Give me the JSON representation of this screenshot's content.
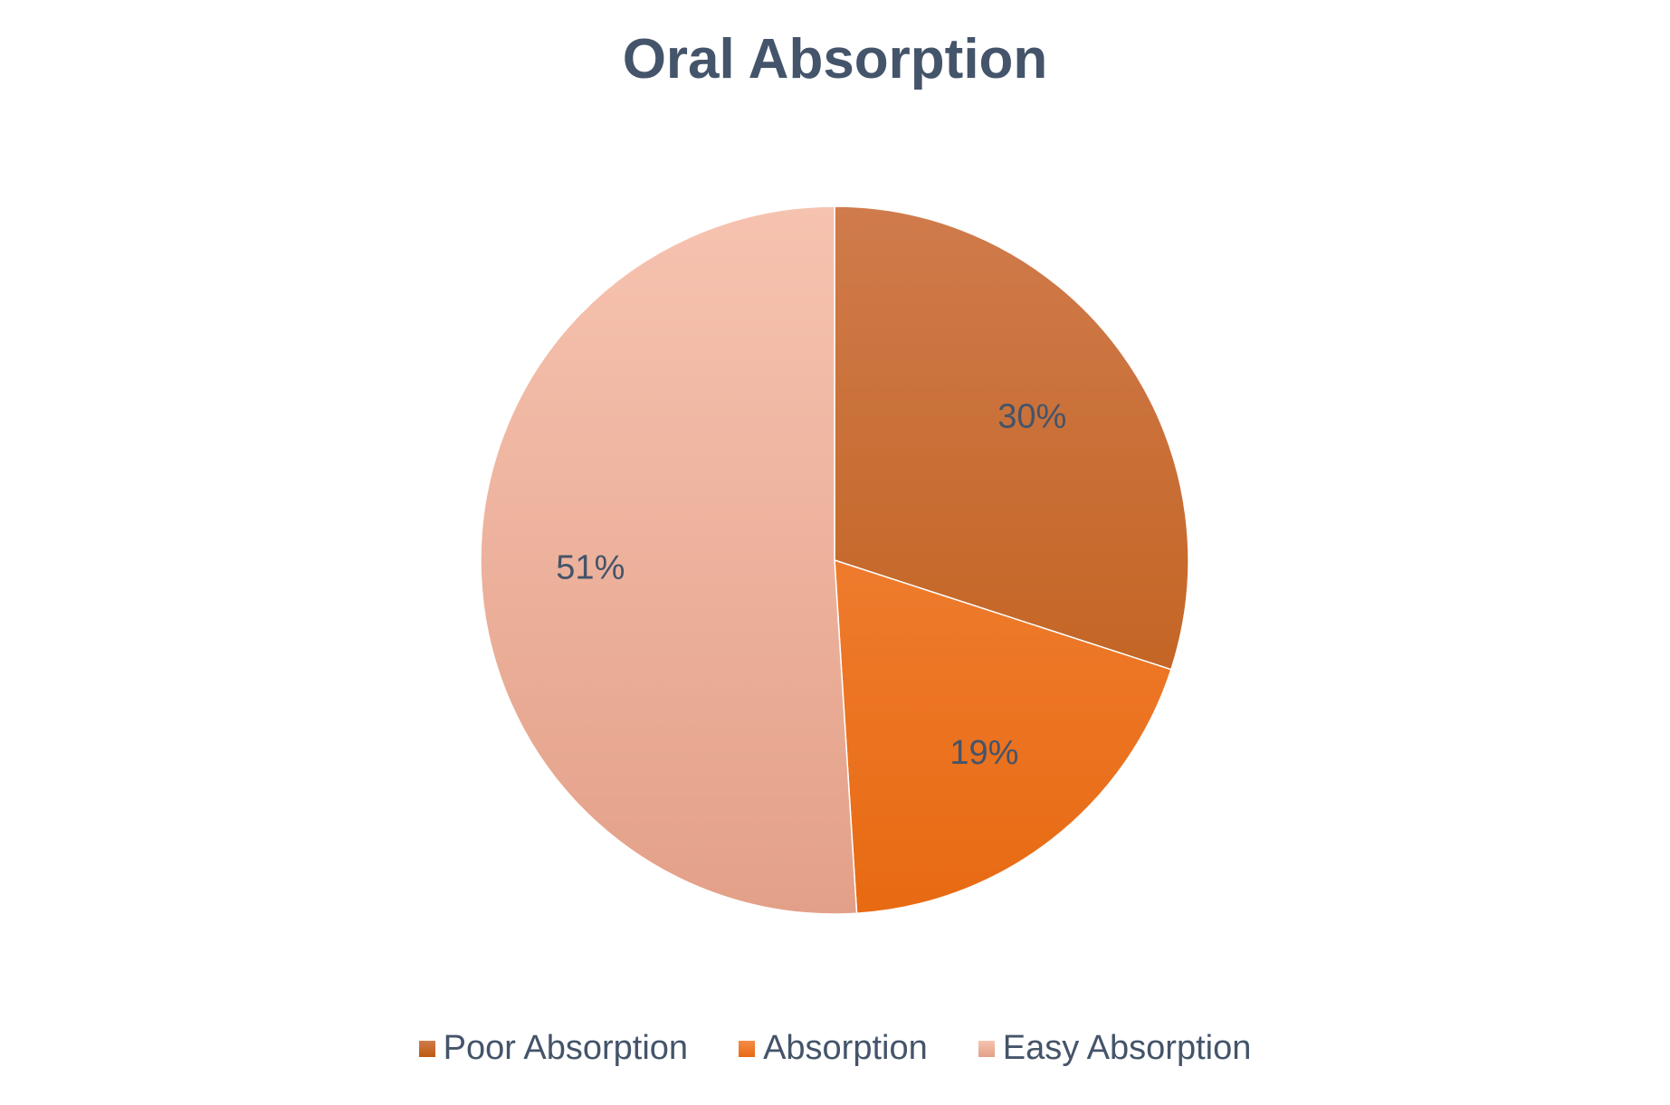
{
  "chart_data": {
    "type": "pie",
    "title": "Oral Absorption",
    "slices": [
      {
        "name": "Poor Absorption",
        "value": 30,
        "label": "30%",
        "color_top": "#d07b4c",
        "color_bottom": "#bd5a10"
      },
      {
        "name": "Absorption",
        "value": 19,
        "label": "19%",
        "color_top": "#f48c48",
        "color_bottom": "#e86a12"
      },
      {
        "name": "Easy Absorption",
        "value": 51,
        "label": "51%",
        "color_top": "#f6c3b0",
        "color_bottom": "#e3a088"
      }
    ],
    "legend": {
      "position": "bottom",
      "items": [
        "Poor Absorption",
        "Absorption",
        "Easy Absorption"
      ]
    },
    "start_angle": "12 o'clock",
    "direction": "clockwise"
  }
}
